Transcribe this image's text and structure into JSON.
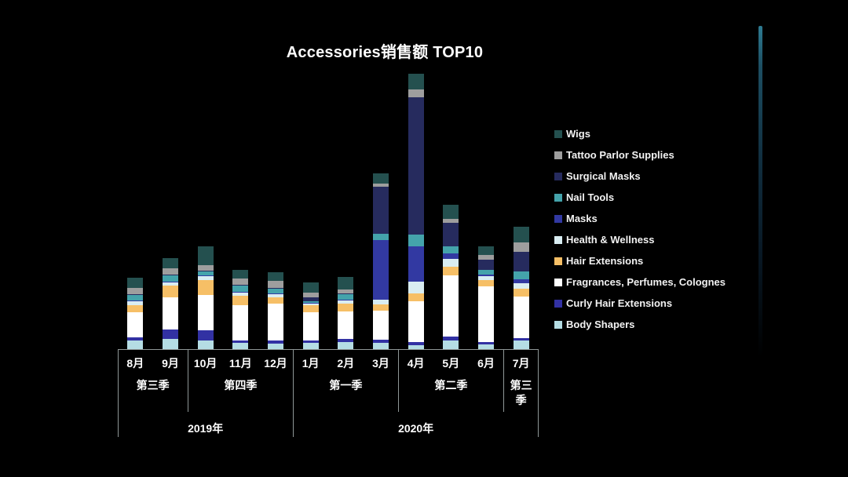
{
  "title": "Accessories销售额 TOP10",
  "chart_data": {
    "type": "bar",
    "stacked": true,
    "title": "Accessories销售额 TOP10",
    "value_axis_visible": false,
    "values_note": "no value axis shown; values are estimated relative units read from bar pixel heights",
    "categories": [
      "8月",
      "9月",
      "10月",
      "11月",
      "12月",
      "1月",
      "2月",
      "3月",
      "4月",
      "5月",
      "6月",
      "7月"
    ],
    "series": [
      {
        "name": "Body Shapers",
        "color": "#b5dde4",
        "values": [
          11,
          13,
          11,
          8,
          7,
          8,
          9,
          8,
          5,
          11,
          6,
          11
        ]
      },
      {
        "name": "Curly Hair Extensions",
        "color": "#3231a3",
        "values": [
          4,
          12,
          13,
          3,
          4,
          3,
          4,
          4,
          4,
          5,
          3,
          3
        ]
      },
      {
        "name": "Fragrances, Perfumes, Colognes",
        "color": "#ffffff",
        "values": [
          32,
          41,
          45,
          45,
          47,
          36,
          35,
          37,
          52,
          78,
          71,
          53
        ]
      },
      {
        "name": "Hair Extensions",
        "color": "#f6bf66",
        "values": [
          9,
          15,
          19,
          12,
          8,
          9,
          10,
          8,
          10,
          11,
          8,
          10
        ]
      },
      {
        "name": "Health & Wellness",
        "color": "#d9edf2",
        "values": [
          5,
          4,
          5,
          4,
          4,
          2,
          4,
          6,
          15,
          10,
          5,
          7
        ]
      },
      {
        "name": "Masks",
        "color": "#3239a2",
        "values": [
          1,
          1,
          1,
          1,
          1,
          1,
          1,
          76,
          45,
          7,
          2,
          5
        ]
      },
      {
        "name": "Nail Tools",
        "color": "#44a3ab",
        "values": [
          7,
          8,
          5,
          8,
          6,
          2,
          7,
          8,
          15,
          9,
          6,
          10
        ]
      },
      {
        "name": "Surgical Masks",
        "color": "#262b5e",
        "values": [
          1,
          1,
          1,
          1,
          1,
          5,
          1,
          60,
          175,
          30,
          13,
          25
        ]
      },
      {
        "name": "Tattoo Parlor Supplies",
        "color": "#9e9e9e",
        "values": [
          8,
          8,
          7,
          8,
          9,
          6,
          5,
          4,
          10,
          5,
          6,
          12
        ]
      },
      {
        "name": "Wigs",
        "color": "#24504f",
        "values": [
          13,
          13,
          24,
          11,
          11,
          13,
          16,
          13,
          20,
          18,
          11,
          20
        ]
      }
    ],
    "stack_order": "bottom-to-top as listed in series",
    "legend_order": [
      "Wigs",
      "Tattoo Parlor Supplies",
      "Surgical Masks",
      "Nail Tools",
      "Masks",
      "Health & Wellness",
      "Hair Extensions",
      "Fragrances, Perfumes, Colognes",
      "Curly Hair Extensions",
      "Body Shapers"
    ],
    "legend_position": "right",
    "x_axis": {
      "quarters": [
        {
          "label": "第三季",
          "start": 0,
          "count": 2
        },
        {
          "label": "第四季",
          "start": 2,
          "count": 3
        },
        {
          "label": "第一季",
          "start": 5,
          "count": 3
        },
        {
          "label": "第二季",
          "start": 8,
          "count": 3
        },
        {
          "label": "第三季",
          "start": 11,
          "count": 1
        }
      ],
      "years": [
        {
          "label": "2019年",
          "start": 0,
          "count": 5
        },
        {
          "label": "2020年",
          "start": 5,
          "count": 7
        }
      ]
    }
  },
  "colors": {
    "background": "#000000",
    "text": "#ffffff",
    "axis_line": "#8f9797",
    "scrollbar_accent": "#2e7b92"
  }
}
